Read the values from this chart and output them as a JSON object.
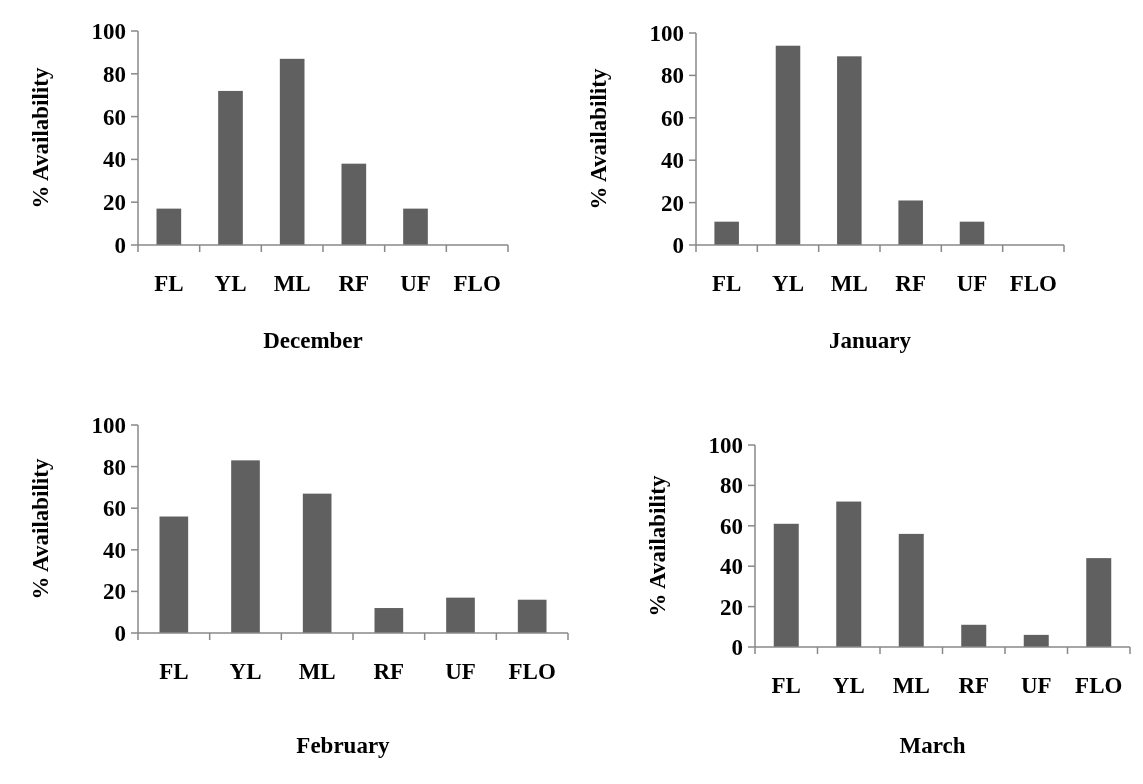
{
  "chart_data": [
    {
      "type": "bar",
      "title": "December",
      "ylabel": "% Availability",
      "categories": [
        "FL",
        "YL",
        "ML",
        "RF",
        "UF",
        "FLO"
      ],
      "values": [
        17,
        72,
        87,
        38,
        17,
        0
      ],
      "color": "#606060",
      "ylim": [
        0,
        100
      ],
      "yticks": [
        0,
        20,
        40,
        60,
        80,
        100
      ],
      "grid": false,
      "legend": false
    },
    {
      "type": "bar",
      "title": "January",
      "ylabel": "% Availability",
      "categories": [
        "FL",
        "YL",
        "ML",
        "RF",
        "UF",
        "FLO"
      ],
      "values": [
        11,
        94,
        89,
        21,
        11,
        0
      ],
      "color": "#606060",
      "ylim": [
        0,
        100
      ],
      "yticks": [
        0,
        20,
        40,
        60,
        80,
        100
      ],
      "grid": false,
      "legend": false
    },
    {
      "type": "bar",
      "title": "February",
      "ylabel": "% Availability",
      "categories": [
        "FL",
        "YL",
        "ML",
        "RF",
        "UF",
        "FLO"
      ],
      "values": [
        56,
        83,
        67,
        12,
        17,
        16
      ],
      "color": "#606060",
      "ylim": [
        0,
        100
      ],
      "yticks": [
        0,
        20,
        40,
        60,
        80,
        100
      ],
      "grid": false,
      "legend": false
    },
    {
      "type": "bar",
      "title": "March",
      "ylabel": "% Availability",
      "categories": [
        "FL",
        "YL",
        "ML",
        "RF",
        "UF",
        "FLO"
      ],
      "values": [
        61,
        72,
        56,
        11,
        6,
        44
      ],
      "color": "#606060",
      "ylim": [
        0,
        100
      ],
      "yticks": [
        0,
        20,
        40,
        60,
        80,
        100
      ],
      "grid": false,
      "legend": false
    }
  ]
}
